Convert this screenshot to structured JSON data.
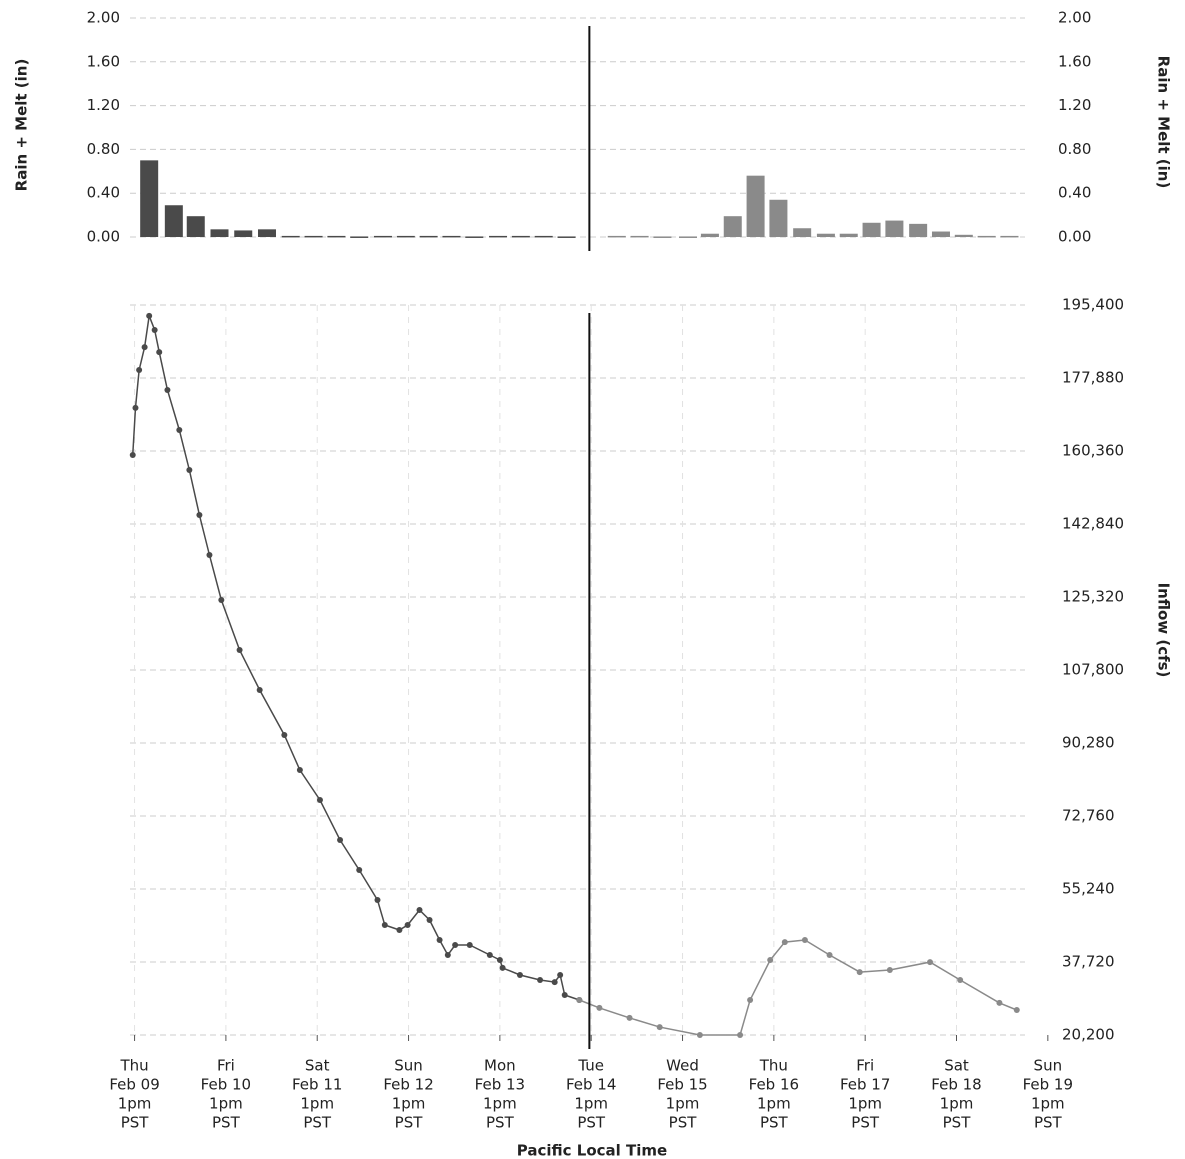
{
  "chart_data": [
    {
      "type": "bar",
      "ylabel": "Rain + Melt (in)",
      "y2label": "Rain + Melt (in)",
      "xlim": [
        -0.05,
        9.75
      ],
      "ylim": [
        0,
        2
      ],
      "yticks": [
        {
          "value": 0,
          "label": "0.00"
        },
        {
          "value": 0.4,
          "label": "0.40"
        },
        {
          "value": 0.8,
          "label": "0.80"
        },
        {
          "value": 1.2,
          "label": "1.20"
        },
        {
          "value": 1.6,
          "label": "1.60"
        },
        {
          "value": 2,
          "label": "2.00"
        }
      ],
      "y2lim": [
        0,
        2
      ],
      "y2ticks": [
        {
          "value": 0,
          "label": "0.00"
        },
        {
          "value": 0.4,
          "label": "0.40"
        },
        {
          "value": 0.8,
          "label": "0.80"
        },
        {
          "value": 1.2,
          "label": "1.20"
        },
        {
          "value": 1.6,
          "label": "1.60"
        },
        {
          "value": 2,
          "label": "2.00"
        }
      ],
      "grid": true,
      "vline": 4.98,
      "series": [
        {
          "color": "#4a4a4a",
          "x": [
            0.16,
            0.43,
            0.67,
            0.93,
            1.19,
            1.45,
            1.71,
            1.96,
            2.21,
            2.46,
            2.72,
            2.97,
            3.22,
            3.47,
            3.72,
            3.98,
            4.23,
            4.48,
            4.73
          ],
          "values": [
            0.7,
            0.29,
            0.19,
            0.07,
            0.06,
            0.07,
            0.01,
            0.01,
            0.01,
            0.005,
            0.01,
            0.01,
            0.01,
            0.01,
            0.005,
            0.01,
            0.01,
            0.01,
            0.005
          ]
        },
        {
          "color": "#8a8a8a",
          "x": [
            5.28,
            5.53,
            5.78,
            6.06,
            6.3,
            6.55,
            6.8,
            7.05,
            7.31,
            7.57,
            7.82,
            8.07,
            8.32,
            8.58,
            8.83,
            9.08,
            9.33,
            9.58
          ],
          "values": [
            0.01,
            0.01,
            0.005,
            0.005,
            0.03,
            0.19,
            0.56,
            0.34,
            0.08,
            0.03,
            0.03,
            0.13,
            0.15,
            0.12,
            0.05,
            0.02,
            0.01,
            0.01
          ]
        }
      ]
    },
    {
      "type": "line",
      "xlabel": "Pacific Local Time",
      "y2label": "Inflow (cfs)",
      "xlim": [
        -0.05,
        9.75
      ],
      "xticks": [
        {
          "value": 0,
          "label": [
            "Thu",
            "Feb 09",
            "1pm",
            "PST"
          ]
        },
        {
          "value": 1,
          "label": [
            "Fri",
            "Feb 10",
            "1pm",
            "PST"
          ]
        },
        {
          "value": 2,
          "label": [
            "Sat",
            "Feb 11",
            "1pm",
            "PST"
          ]
        },
        {
          "value": 3,
          "label": [
            "Sun",
            "Feb 12",
            "1pm",
            "PST"
          ]
        },
        {
          "value": 4,
          "label": [
            "Mon",
            "Feb 13",
            "1pm",
            "PST"
          ]
        },
        {
          "value": 5,
          "label": [
            "Tue",
            "Feb 14",
            "1pm",
            "PST"
          ]
        },
        {
          "value": 6,
          "label": [
            "Wed",
            "Feb 15",
            "1pm",
            "PST"
          ]
        },
        {
          "value": 7,
          "label": [
            "Thu",
            "Feb 16",
            "1pm",
            "PST"
          ]
        },
        {
          "value": 8,
          "label": [
            "Fri",
            "Feb 17",
            "1pm",
            "PST"
          ]
        },
        {
          "value": 9,
          "label": [
            "Sat",
            "Feb 18",
            "1pm",
            "PST"
          ]
        },
        {
          "value": 10,
          "label": [
            "Sun",
            "Feb 19",
            "1pm",
            "PST"
          ]
        }
      ],
      "y2lim": [
        20200,
        195400
      ],
      "y2ticks": [
        {
          "value": 20200,
          "label": "20,200"
        },
        {
          "value": 37720,
          "label": "37,720"
        },
        {
          "value": 55240,
          "label": "55,240"
        },
        {
          "value": 72760,
          "label": "72,760"
        },
        {
          "value": 90280,
          "label": "90,280"
        },
        {
          "value": 107800,
          "label": "107,800"
        },
        {
          "value": 125320,
          "label": "125,320"
        },
        {
          "value": 142840,
          "label": "142,840"
        },
        {
          "value": 160360,
          "label": "160,360"
        },
        {
          "value": 177880,
          "label": "177,880"
        },
        {
          "value": 195400,
          "label": "195,400"
        }
      ],
      "grid": true,
      "vline": 4.98,
      "series": [
        {
          "color": "#4a4a4a",
          "axis": "y2",
          "x": [
            -0.02,
            0.01,
            0.05,
            0.11,
            0.16,
            0.22,
            0.27,
            0.36,
            0.49,
            0.6,
            0.71,
            0.82,
            0.95,
            1.15,
            1.37,
            1.64,
            1.81,
            2.03,
            2.25,
            2.46,
            2.66,
            2.74,
            2.9,
            2.99,
            3.12,
            3.23,
            3.34,
            3.43,
            3.51,
            3.67,
            3.89,
            4.0,
            4.03,
            4.22,
            4.44,
            4.6,
            4.66,
            4.71,
            4.87
          ],
          "values": [
            159400,
            170700,
            179800,
            185300,
            192800,
            189400,
            184100,
            175000,
            165400,
            155800,
            145000,
            135400,
            124600,
            112600,
            103000,
            92200,
            83800,
            76600,
            67000,
            59800,
            52600,
            46600,
            45400,
            46600,
            50200,
            47800,
            43000,
            39400,
            41800,
            41800,
            39400,
            38200,
            36300,
            34600,
            33400,
            32900,
            34600,
            29800,
            28600
          ]
        },
        {
          "color": "#8a8a8a",
          "axis": "y2",
          "x": [
            4.87,
            5.09,
            5.42,
            5.75,
            6.19,
            6.63,
            6.74,
            6.96,
            7.12,
            7.34,
            7.61,
            7.94,
            8.27,
            8.71,
            9.04,
            9.47,
            9.66
          ],
          "values": [
            28600,
            26700,
            24300,
            22100,
            20200,
            20200,
            28600,
            38200,
            42500,
            43000,
            39400,
            35300,
            35800,
            37700,
            33400,
            27900,
            26200
          ]
        }
      ]
    }
  ]
}
